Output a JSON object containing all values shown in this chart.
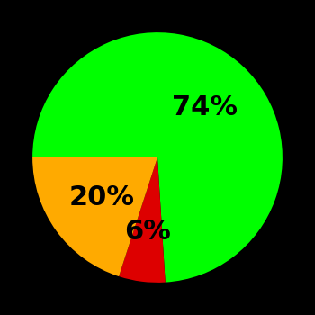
{
  "slices": [
    74,
    6,
    20
  ],
  "colors": [
    "#00ff00",
    "#dd0000",
    "#ffaa00"
  ],
  "labels": [
    "74%",
    "6%",
    "20%"
  ],
  "background_color": "#000000",
  "startangle": 180,
  "label_fontsize": 22,
  "label_fontweight": "bold",
  "label_radii": [
    0.55,
    0.6,
    0.55
  ]
}
